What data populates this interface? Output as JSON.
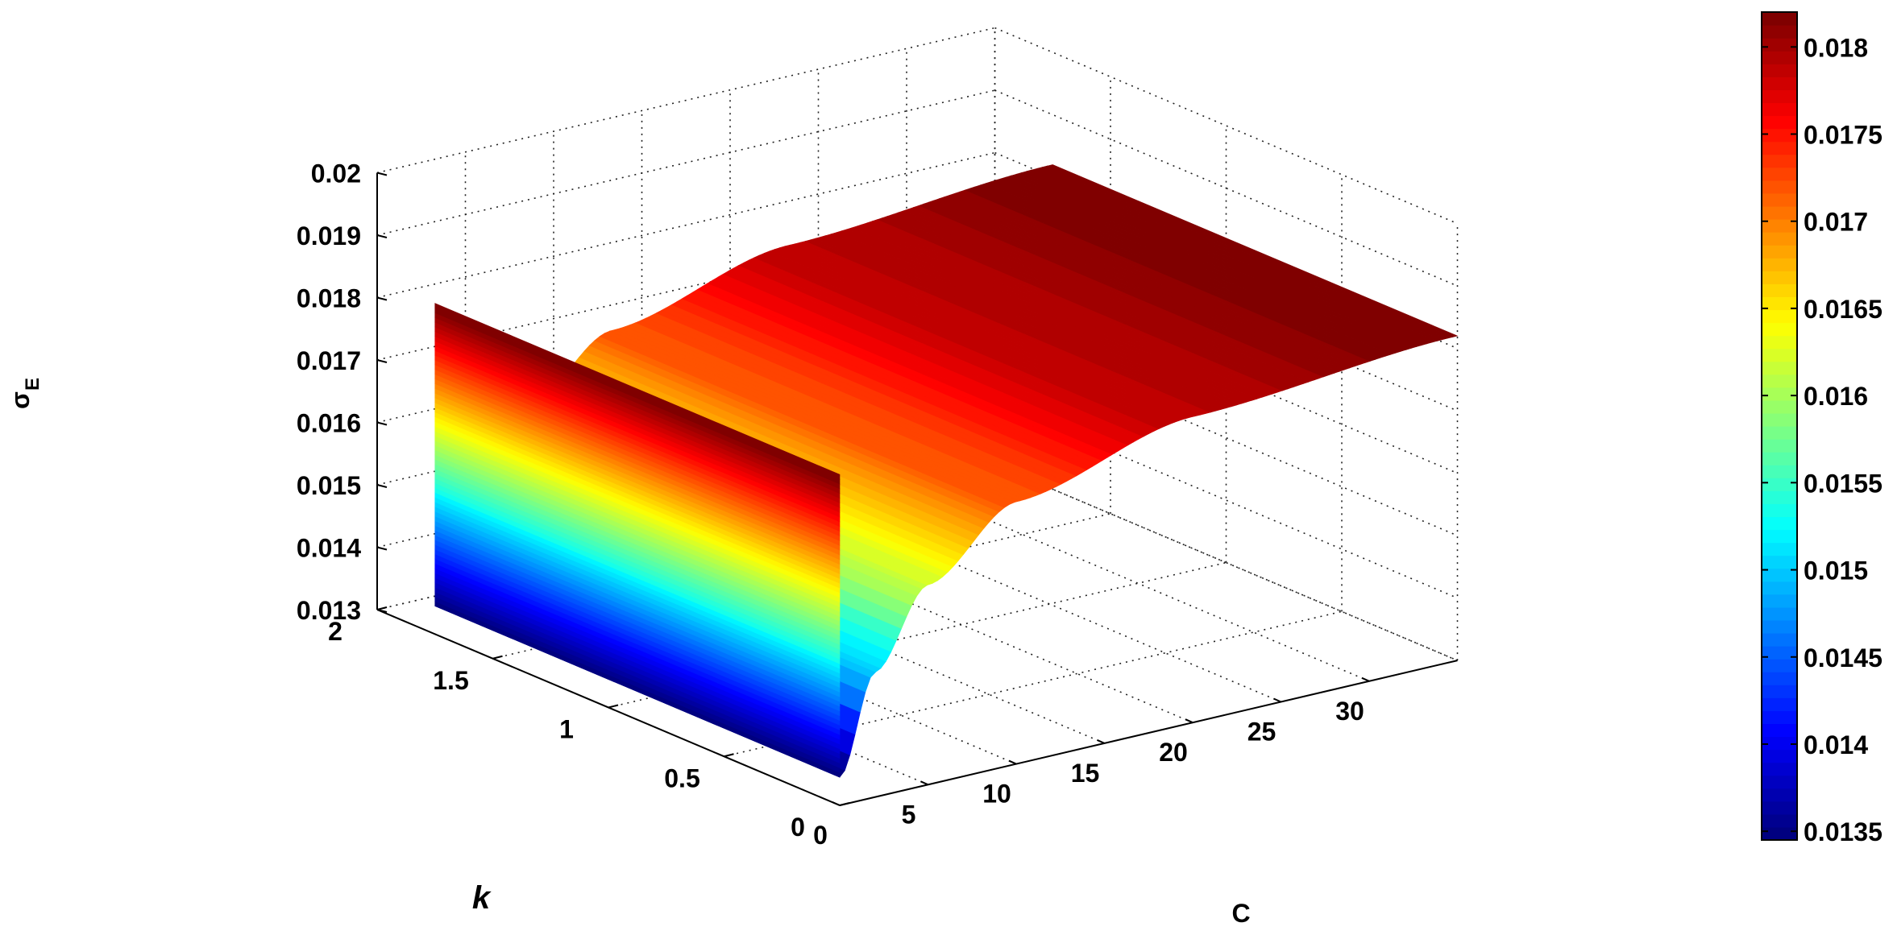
{
  "chart_data": {
    "type": "surface",
    "xlabel": "C",
    "ylabel": "k",
    "zlabel": "σ",
    "zlabel_subscript": "E",
    "xlim": [
      0,
      35
    ],
    "ylim": [
      0,
      2
    ],
    "zlim": [
      0.013,
      0.02
    ],
    "x_ticks": [
      "0",
      "5",
      "10",
      "15",
      "20",
      "25",
      "30"
    ],
    "y_ticks": [
      "0",
      "0.5",
      "1",
      "1.5",
      "2"
    ],
    "z_ticks": [
      "0.013",
      "0.014",
      "0.015",
      "0.016",
      "0.017",
      "0.018",
      "0.019",
      "0.02"
    ],
    "colorbar": {
      "range": [
        0.01345,
        0.0182
      ],
      "colormap": "jet",
      "ticks": [
        "0.0135",
        "0.014",
        "0.0145",
        "0.015",
        "0.0155",
        "0.016",
        "0.0165",
        "0.017",
        "0.0175",
        "0.018"
      ]
    },
    "surface": {
      "x_range": [
        0,
        35
      ],
      "y_range": [
        0,
        1.75
      ],
      "z_min": 0.01345,
      "z_max": 0.0182,
      "samples": [
        {
          "x": 0,
          "z": 0.01345
        },
        {
          "x": 2,
          "z": 0.015
        },
        {
          "x": 5,
          "z": 0.0162
        },
        {
          "x": 10,
          "z": 0.0172
        },
        {
          "x": 20,
          "z": 0.0179
        },
        {
          "x": 35,
          "z": 0.0182
        }
      ]
    },
    "grid": true
  }
}
